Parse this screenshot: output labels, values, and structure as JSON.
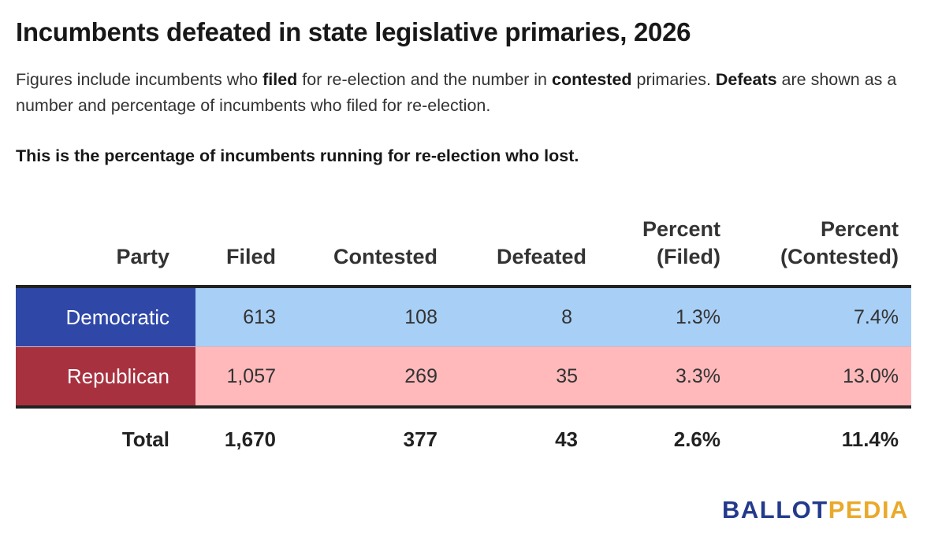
{
  "title": "Incumbents defeated in state legislative primaries, 2026",
  "subtitle": {
    "p1": "Figures include incumbents who ",
    "b1": "filed",
    "p2": " for re-election and the number in ",
    "b2": "contested",
    "p3": " primaries. ",
    "b3": "Defeats",
    "p4": " are shown as a number and percentage of incumbents who filed for re-election."
  },
  "note": "This is the percentage of incumbents running for re-election who lost.",
  "colors": {
    "democratic_label": "#2f48a8",
    "democratic_row": "#a8cff5",
    "republican_label": "#a8313f",
    "republican_row": "#ffb9bb"
  },
  "chart_data": {
    "type": "table",
    "columns": [
      "Party",
      "Filed",
      "Contested",
      "Defeated",
      "Percent (Filed)",
      "Percent (Contested)"
    ],
    "header": {
      "party": "Party",
      "filed": "Filed",
      "contested": "Contested",
      "defeated": "Defeated",
      "pct_filed_1": "Percent",
      "pct_filed_2": "(Filed)",
      "pct_contested_1": "Percent",
      "pct_contested_2": "(Contested)"
    },
    "rows": [
      {
        "party": "Democratic",
        "filed": "613",
        "contested": "108",
        "defeated": "8",
        "pct_filed": "1.3%",
        "pct_contested": "7.4%"
      },
      {
        "party": "Republican",
        "filed": "1,057",
        "contested": "269",
        "defeated": "35",
        "pct_filed": "3.3%",
        "pct_contested": "13.0%"
      }
    ],
    "total": {
      "party": "Total",
      "filed": "1,670",
      "contested": "377",
      "defeated": "43",
      "pct_filed": "2.6%",
      "pct_contested": "11.4%"
    }
  },
  "logo": {
    "part1": "BALLOT",
    "part2": "PEDIA"
  }
}
